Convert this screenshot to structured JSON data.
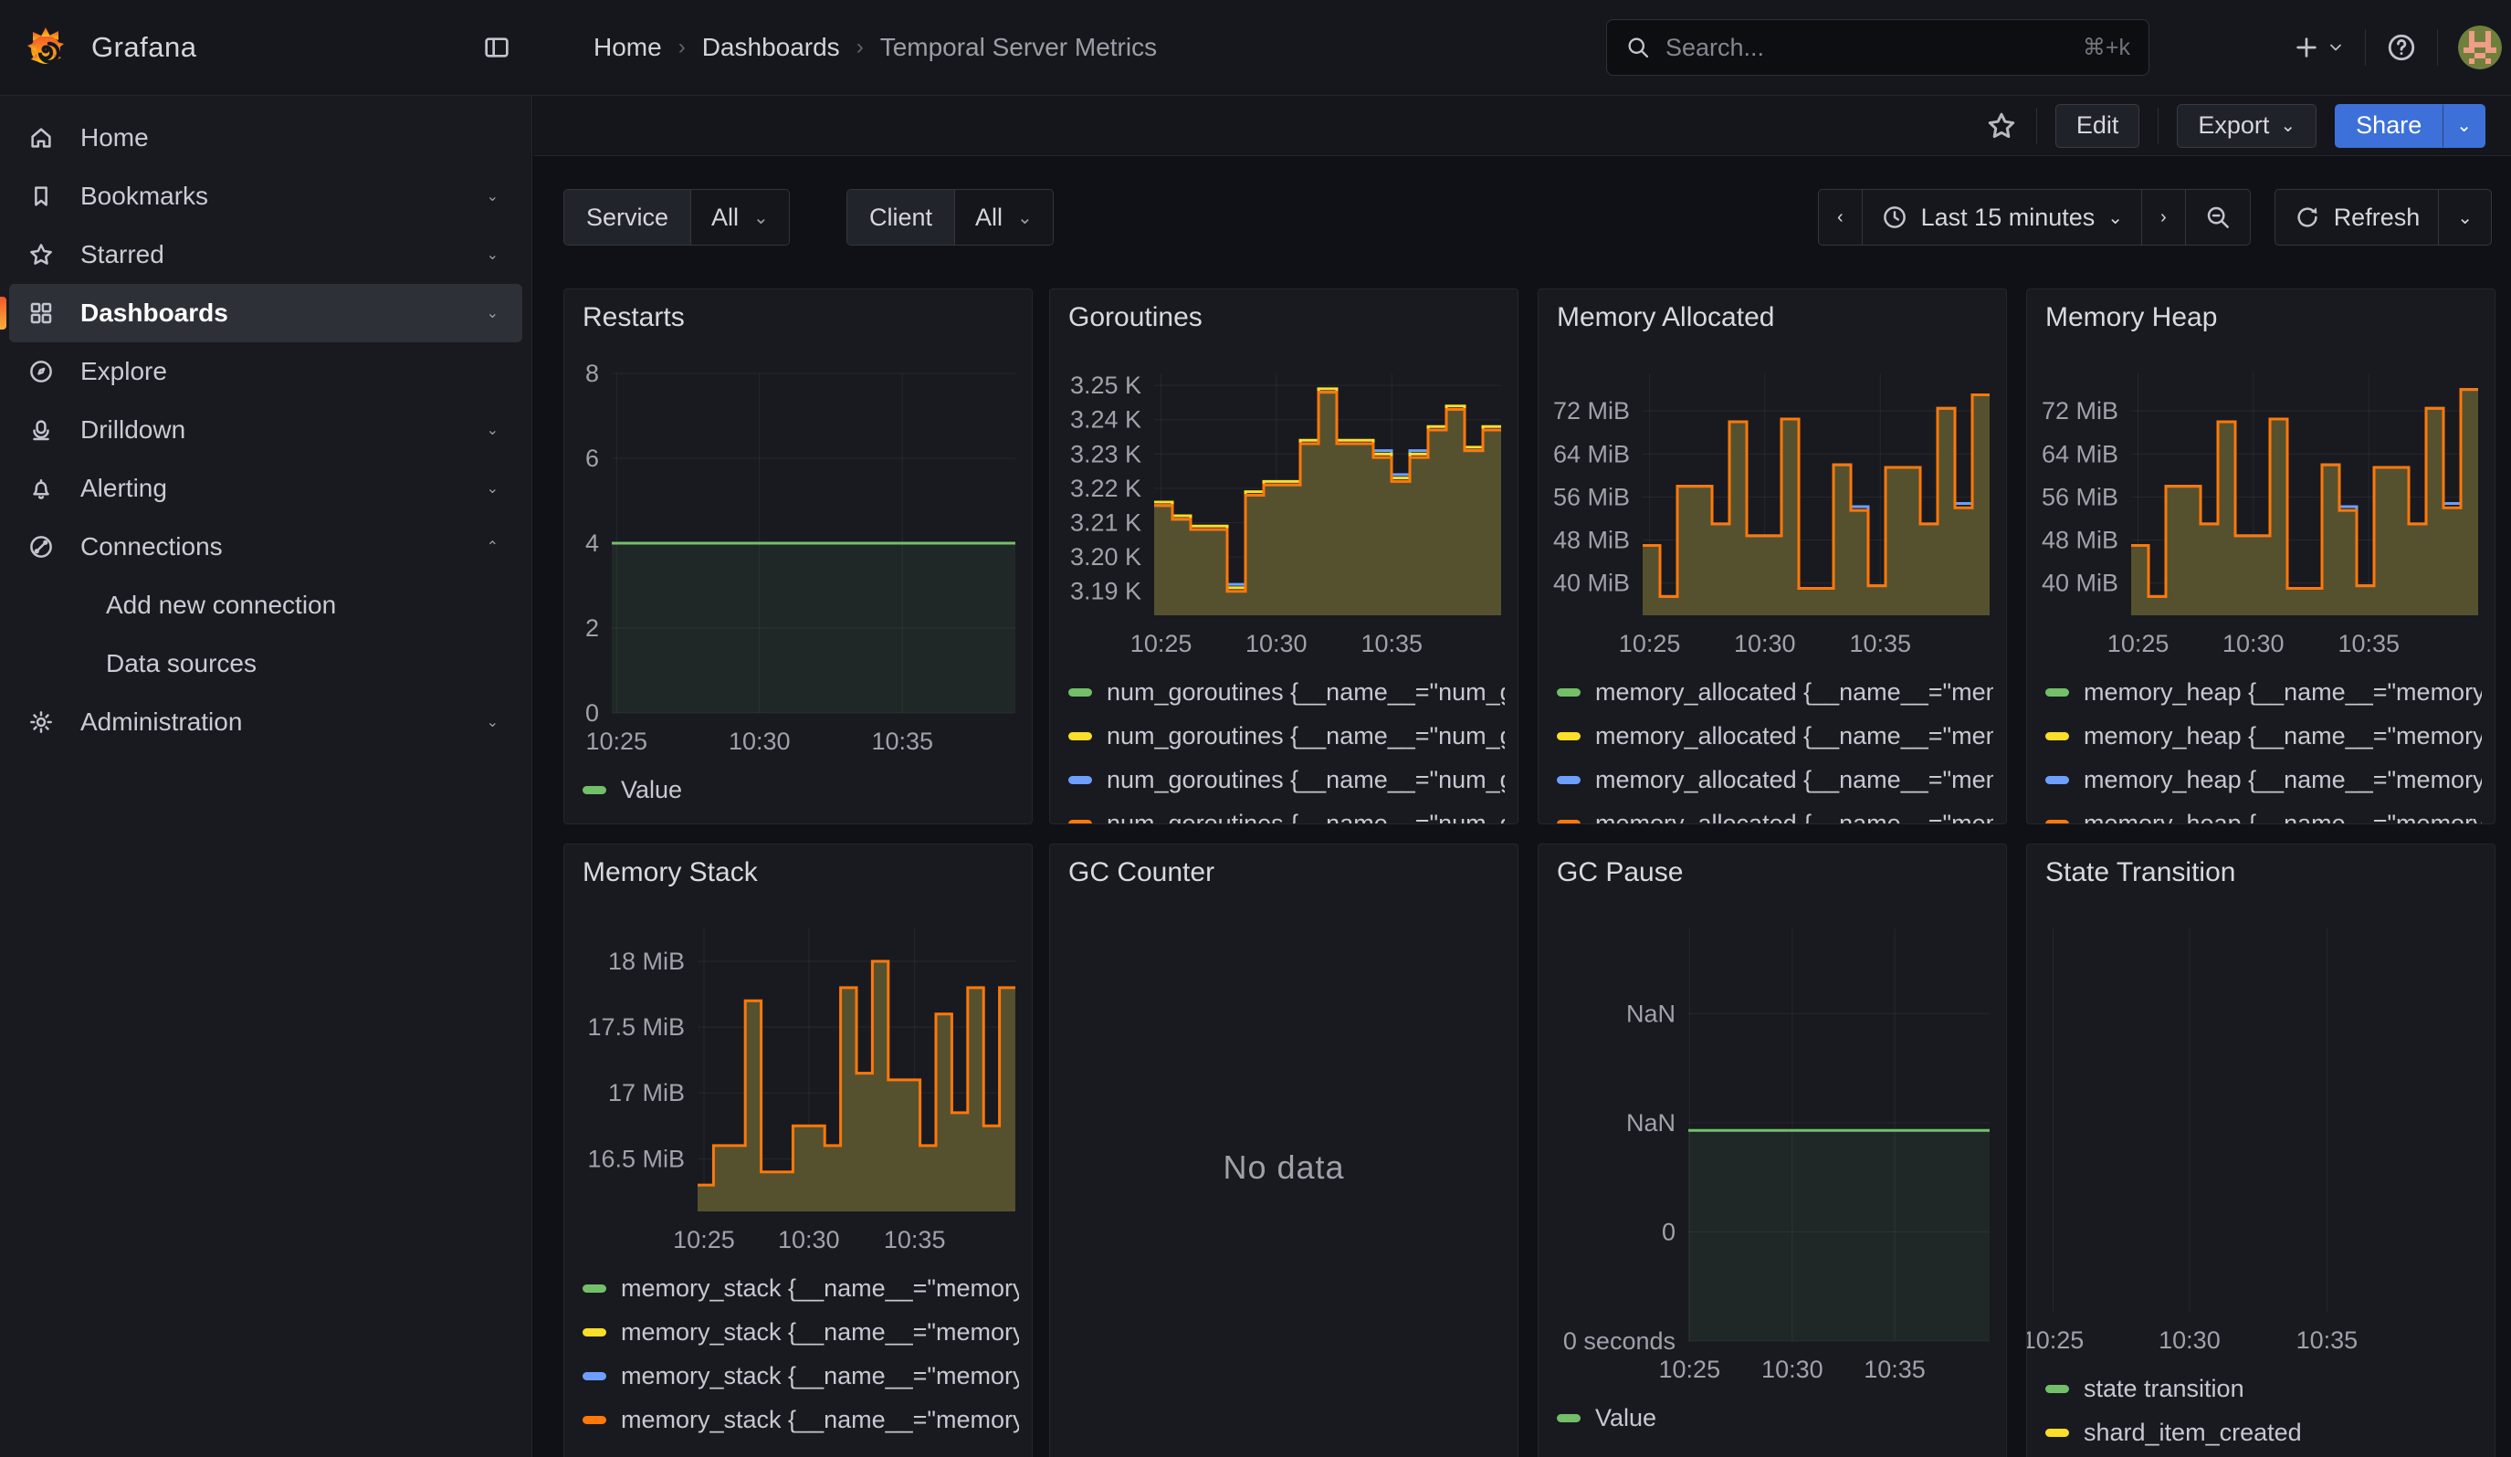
{
  "app": {
    "name": "Grafana"
  },
  "topnav": {
    "breadcrumb": [
      "Home",
      "Dashboards",
      "Temporal Server Metrics"
    ],
    "search": {
      "placeholder": "Search...",
      "shortcut": "⌘+k"
    }
  },
  "toolbar": {
    "edit_label": "Edit",
    "export_label": "Export",
    "share_label": "Share"
  },
  "sidebar": {
    "items": [
      {
        "label": "Home"
      },
      {
        "label": "Bookmarks"
      },
      {
        "label": "Starred"
      },
      {
        "label": "Dashboards",
        "active": true
      },
      {
        "label": "Explore"
      },
      {
        "label": "Drilldown"
      },
      {
        "label": "Alerting"
      },
      {
        "label": "Connections"
      },
      {
        "label": "Add new connection"
      },
      {
        "label": "Data sources"
      },
      {
        "label": "Administration"
      }
    ]
  },
  "filters": {
    "service_label": "Service",
    "service_value": "All",
    "client_label": "Client",
    "client_value": "All"
  },
  "timebar": {
    "range_label": "Last 15 minutes",
    "refresh_label": "Refresh"
  },
  "colors": {
    "accent_blue": "#3D71D9",
    "series_green": "#73BF69",
    "series_yellow": "#FADE2A",
    "series_blue": "#6E9FFF",
    "series_orange": "#FF780A",
    "step_fill_olive": "#55512E"
  },
  "chart_data": [
    {
      "id": "restarts",
      "type": "line",
      "title": "Restarts",
      "ylim": [
        0,
        8
      ],
      "flat_value": 4,
      "flat_color": "#73BF69",
      "flat_fill": "rgba(115,191,105,0.09)",
      "y_ticks": [
        {
          "v": 8,
          "label": "8"
        },
        {
          "v": 6,
          "label": "6"
        },
        {
          "v": 4,
          "label": "4"
        },
        {
          "v": 2,
          "label": "2"
        },
        {
          "v": 0,
          "label": "0"
        }
      ],
      "x_ticks": [
        {
          "f": 0.012,
          "label": "10:25"
        },
        {
          "f": 0.366,
          "label": "10:30"
        },
        {
          "f": 0.72,
          "label": "10:35"
        }
      ],
      "legend": [
        {
          "color": "#73BF69",
          "label": "Value"
        }
      ]
    },
    {
      "id": "goroutines",
      "type": "step-area",
      "title": "Goroutines",
      "ylim": [
        3.183,
        3.2535
      ],
      "fill": "#55512E",
      "y_ticks": [
        {
          "v": 3.25,
          "label": "3.25 K"
        },
        {
          "v": 3.24,
          "label": "3.24 K"
        },
        {
          "v": 3.23,
          "label": "3.23 K"
        },
        {
          "v": 3.22,
          "label": "3.22 K"
        },
        {
          "v": 3.21,
          "label": "3.21 K"
        },
        {
          "v": 3.2,
          "label": "3.20 K"
        },
        {
          "v": 3.19,
          "label": "3.19 K"
        }
      ],
      "x_ticks": [
        {
          "f": 0.02,
          "label": "10:25"
        },
        {
          "f": 0.352,
          "label": "10:30"
        },
        {
          "f": 0.685,
          "label": "10:35"
        }
      ],
      "series": [
        {
          "color": "#6E9FFF",
          "values": [
            3.215,
            3.211,
            3.208,
            3.208,
            3.192,
            3.218,
            3.221,
            3.221,
            3.233,
            3.248,
            3.233,
            3.233,
            3.231,
            3.224,
            3.231,
            3.237,
            3.243,
            3.231,
            3.237
          ]
        },
        {
          "color": "#FADE2A",
          "values": [
            3.216,
            3.212,
            3.209,
            3.209,
            3.191,
            3.219,
            3.222,
            3.222,
            3.234,
            3.249,
            3.234,
            3.234,
            3.23,
            3.223,
            3.23,
            3.238,
            3.244,
            3.232,
            3.238
          ]
        },
        {
          "color": "#FF780A",
          "values": [
            3.215,
            3.211,
            3.208,
            3.208,
            3.19,
            3.218,
            3.221,
            3.221,
            3.233,
            3.248,
            3.233,
            3.233,
            3.229,
            3.222,
            3.229,
            3.237,
            3.243,
            3.231,
            3.237
          ]
        }
      ],
      "legend": [
        {
          "color": "#73BF69",
          "label": "num_goroutines {__name__=\"num_go"
        },
        {
          "color": "#FADE2A",
          "label": "num_goroutines {__name__=\"num_go"
        },
        {
          "color": "#6E9FFF",
          "label": "num_goroutines {__name__=\"num_go"
        },
        {
          "color": "#FF780A",
          "label": "num_goroutines {__name__=\"num_go"
        }
      ]
    },
    {
      "id": "memory-allocated",
      "type": "step-area",
      "title": "Memory Allocated",
      "ylim": [
        34,
        79
      ],
      "fill": "#55512E",
      "y_ticks": [
        {
          "v": 72,
          "label": "72 MiB"
        },
        {
          "v": 64,
          "label": "64 MiB"
        },
        {
          "v": 56,
          "label": "56 MiB"
        },
        {
          "v": 48,
          "label": "48 MiB"
        },
        {
          "v": 40,
          "label": "40 MiB"
        }
      ],
      "x_ticks": [
        {
          "f": 0.02,
          "label": "10:25"
        },
        {
          "f": 0.352,
          "label": "10:30"
        },
        {
          "f": 0.685,
          "label": "10:35"
        }
      ],
      "series": [
        {
          "color": "#6E9FFF",
          "values": [
            47,
            37.5,
            58,
            58,
            51,
            70,
            48.8,
            48.8,
            70.5,
            39,
            39,
            62,
            54.2,
            39.5,
            61.5,
            61.5,
            51,
            72.5,
            54.8,
            75
          ]
        },
        {
          "color": "#FF780A",
          "values": [
            47,
            37.5,
            58,
            58,
            51,
            70,
            48.8,
            48.8,
            70.5,
            39,
            39,
            62,
            53.5,
            39.5,
            61.5,
            61.5,
            51,
            72.5,
            54,
            75
          ]
        }
      ],
      "legend": [
        {
          "color": "#73BF69",
          "label": "memory_allocated {__name__=\"memo"
        },
        {
          "color": "#FADE2A",
          "label": "memory_allocated {__name__=\"memo"
        },
        {
          "color": "#6E9FFF",
          "label": "memory_allocated {__name__=\"memo"
        },
        {
          "color": "#FF780A",
          "label": "memory_allocated {__name__=\"memo"
        }
      ]
    },
    {
      "id": "memory-heap",
      "type": "step-area",
      "title": "Memory Heap",
      "ylim": [
        34,
        79
      ],
      "fill": "#55512E",
      "y_ticks": [
        {
          "v": 72,
          "label": "72 MiB"
        },
        {
          "v": 64,
          "label": "64 MiB"
        },
        {
          "v": 56,
          "label": "56 MiB"
        },
        {
          "v": 48,
          "label": "48 MiB"
        },
        {
          "v": 40,
          "label": "40 MiB"
        }
      ],
      "x_ticks": [
        {
          "f": 0.02,
          "label": "10:25"
        },
        {
          "f": 0.352,
          "label": "10:30"
        },
        {
          "f": 0.685,
          "label": "10:35"
        }
      ],
      "series": [
        {
          "color": "#6E9FFF",
          "values": [
            47,
            37.5,
            58,
            58,
            51,
            70,
            48.8,
            48.8,
            70.5,
            39,
            39,
            62,
            54.2,
            39.5,
            61.5,
            61.5,
            51,
            72.5,
            54.8,
            76
          ]
        },
        {
          "color": "#FF780A",
          "values": [
            47,
            37.5,
            58,
            58,
            51,
            70,
            48.8,
            48.8,
            70.5,
            39,
            39,
            62,
            53.5,
            39.5,
            61.5,
            61.5,
            51,
            72.5,
            54,
            76
          ]
        }
      ],
      "legend": [
        {
          "color": "#73BF69",
          "label": "memory_heap {__name__=\"memory_h"
        },
        {
          "color": "#FADE2A",
          "label": "memory_heap {__name__=\"memory_h"
        },
        {
          "color": "#6E9FFF",
          "label": "memory_heap {__name__=\"memory_h"
        },
        {
          "color": "#FF780A",
          "label": "memory_heap {__name__=\"memory_h"
        }
      ]
    },
    {
      "id": "memory-stack",
      "type": "step-area",
      "title": "Memory Stack",
      "ylim": [
        16.1,
        18.25
      ],
      "fill": "#55512E",
      "y_ticks": [
        {
          "v": 18,
          "label": "18 MiB"
        },
        {
          "v": 17.5,
          "label": "17.5 MiB"
        },
        {
          "v": 17,
          "label": "17 MiB"
        },
        {
          "v": 16.5,
          "label": "16.5 MiB"
        }
      ],
      "x_ticks": [
        {
          "f": 0.02,
          "label": "10:25"
        },
        {
          "f": 0.35,
          "label": "10:30"
        },
        {
          "f": 0.683,
          "label": "10:35"
        }
      ],
      "series": [
        {
          "color": "#FF780A",
          "values": [
            16.3,
            16.6,
            16.6,
            17.7,
            16.4,
            16.4,
            16.75,
            16.75,
            16.6,
            17.8,
            17.15,
            18.0,
            17.1,
            17.1,
            16.6,
            17.6,
            16.85,
            17.8,
            16.75,
            17.8
          ]
        }
      ],
      "legend": [
        {
          "color": "#73BF69",
          "label": "memory_stack {__name__=\"memory_s"
        },
        {
          "color": "#FADE2A",
          "label": "memory_stack {__name__=\"memory_s"
        },
        {
          "color": "#6E9FFF",
          "label": "memory_stack {__name__=\"memory_s"
        },
        {
          "color": "#FF780A",
          "label": "memory_stack {__name__=\"memory_s"
        }
      ]
    },
    {
      "id": "gc-counter",
      "type": "nodata",
      "title": "GC Counter",
      "no_data": "No data"
    },
    {
      "id": "gc-pause",
      "type": "line",
      "title": "GC Pause",
      "ylim": [
        0,
        3.78
      ],
      "flat_value": 1.93,
      "flat_color": "#73BF69",
      "flat_fill": "rgba(115,191,105,0.09)",
      "y_ticks": [
        {
          "v": 3,
          "label": "NaN"
        },
        {
          "v": 2,
          "label": "NaN"
        },
        {
          "v": 1,
          "label": "0"
        },
        {
          "v": 0,
          "label": "0 seconds"
        }
      ],
      "x_ticks": [
        {
          "f": 0.004,
          "label": "10:25"
        },
        {
          "f": 0.345,
          "label": "10:30"
        },
        {
          "f": 0.685,
          "label": "10:35"
        }
      ],
      "legend": [
        {
          "color": "#73BF69",
          "label": "Value"
        }
      ]
    },
    {
      "id": "state-transition",
      "type": "empty",
      "title": "State Transition",
      "x_ticks": [
        {
          "f": 0.022,
          "label": "10:25"
        },
        {
          "f": 0.336,
          "label": "10:30"
        },
        {
          "f": 0.652,
          "label": "10:35"
        }
      ],
      "legend": [
        {
          "color": "#73BF69",
          "label": "state transition"
        },
        {
          "color": "#FADE2A",
          "label": "shard_item_created"
        }
      ]
    }
  ]
}
